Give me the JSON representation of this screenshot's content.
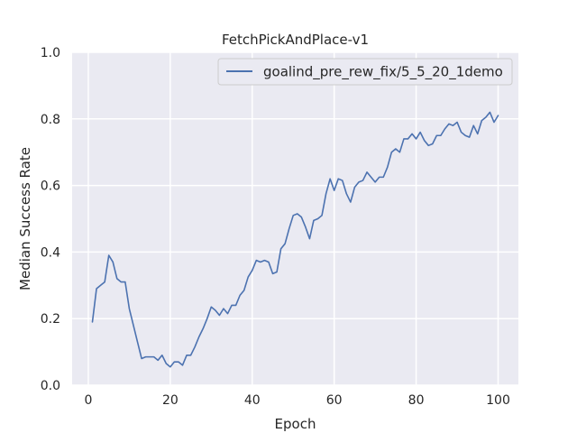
{
  "chart_data": {
    "type": "line",
    "title": "FetchPickAndPlace-v1",
    "xlabel": "Epoch",
    "ylabel": "Median Success Rate",
    "xlim": [
      -3.95,
      104.95
    ],
    "ylim": [
      0.0,
      1.0
    ],
    "xticks": [
      0,
      20,
      40,
      60,
      80,
      100
    ],
    "xtick_labels": [
      "0",
      "20",
      "40",
      "60",
      "80",
      "100"
    ],
    "yticks": [
      0.0,
      0.2,
      0.4,
      0.6,
      0.8,
      1.0
    ],
    "ytick_labels": [
      "0.0",
      "0.2",
      "0.4",
      "0.6",
      "0.8",
      "1.0"
    ],
    "grid": true,
    "legend_position": "top-right",
    "colors": {
      "background": "#eaeaf2",
      "grid": "#ffffff",
      "line": "#4c72b0"
    },
    "series": [
      {
        "name": "goalind_pre_rew_fix/5_5_20_1demo",
        "x": [
          1,
          2,
          3,
          4,
          5,
          6,
          7,
          8,
          9,
          10,
          11,
          12,
          13,
          14,
          15,
          16,
          17,
          18,
          19,
          20,
          21,
          22,
          23,
          24,
          25,
          26,
          27,
          28,
          29,
          30,
          31,
          32,
          33,
          34,
          35,
          36,
          37,
          38,
          39,
          40,
          41,
          42,
          43,
          44,
          45,
          46,
          47,
          48,
          49,
          50,
          51,
          52,
          53,
          54,
          55,
          56,
          57,
          58,
          59,
          60,
          61,
          62,
          63,
          64,
          65,
          66,
          67,
          68,
          69,
          70,
          71,
          72,
          73,
          74,
          75,
          76,
          77,
          78,
          79,
          80,
          81,
          82,
          83,
          84,
          85,
          86,
          87,
          88,
          89,
          90,
          91,
          92,
          93,
          94,
          95,
          96,
          97,
          98,
          99,
          100
        ],
        "y": [
          0.19,
          0.29,
          0.3,
          0.31,
          0.39,
          0.37,
          0.32,
          0.31,
          0.31,
          0.23,
          0.18,
          0.13,
          0.08,
          0.085,
          0.085,
          0.085,
          0.075,
          0.09,
          0.065,
          0.055,
          0.07,
          0.07,
          0.06,
          0.09,
          0.09,
          0.115,
          0.145,
          0.17,
          0.2,
          0.235,
          0.225,
          0.21,
          0.23,
          0.215,
          0.24,
          0.24,
          0.27,
          0.285,
          0.325,
          0.345,
          0.375,
          0.37,
          0.375,
          0.37,
          0.335,
          0.34,
          0.41,
          0.425,
          0.47,
          0.51,
          0.515,
          0.505,
          0.475,
          0.44,
          0.495,
          0.5,
          0.51,
          0.575,
          0.62,
          0.585,
          0.62,
          0.615,
          0.575,
          0.55,
          0.595,
          0.61,
          0.615,
          0.64,
          0.625,
          0.61,
          0.625,
          0.625,
          0.655,
          0.7,
          0.71,
          0.7,
          0.74,
          0.74,
          0.755,
          0.74,
          0.76,
          0.735,
          0.72,
          0.725,
          0.75,
          0.75,
          0.77,
          0.785,
          0.78,
          0.79,
          0.76,
          0.75,
          0.745,
          0.78,
          0.755,
          0.795,
          0.805,
          0.82,
          0.79,
          0.81
        ]
      }
    ]
  }
}
